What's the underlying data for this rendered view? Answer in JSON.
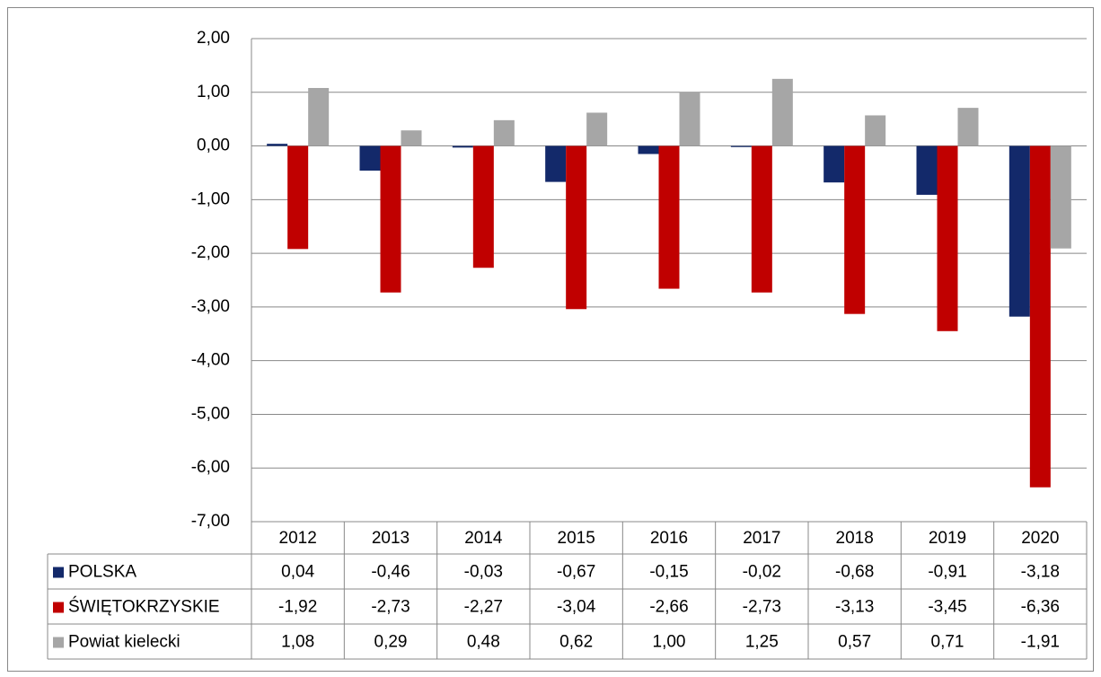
{
  "chart_data": {
    "type": "bar",
    "categories": [
      "2012",
      "2013",
      "2014",
      "2015",
      "2016",
      "2017",
      "2018",
      "2019",
      "2020"
    ],
    "series": [
      {
        "name": "POLSKA",
        "color": "#13296a",
        "values": [
          0.04,
          -0.46,
          -0.03,
          -0.67,
          -0.15,
          -0.02,
          -0.68,
          -0.91,
          -3.18
        ],
        "value_labels": [
          "0,04",
          "-0,46",
          "-0,03",
          "-0,67",
          "-0,15",
          "-0,02",
          "-0,68",
          "-0,91",
          "-3,18"
        ]
      },
      {
        "name": "ŚWIĘTOKRZYSKIE",
        "color": "#c00000",
        "values": [
          -1.92,
          -2.73,
          -2.27,
          -3.04,
          -2.66,
          -2.73,
          -3.13,
          -3.45,
          -6.36
        ],
        "value_labels": [
          "-1,92",
          "-2,73",
          "-2,27",
          "-3,04",
          "-2,66",
          "-2,73",
          "-3,13",
          "-3,45",
          "-6,36"
        ]
      },
      {
        "name": "Powiat kielecki",
        "color": "#a6a6a6",
        "values": [
          1.08,
          0.29,
          0.48,
          0.62,
          1.0,
          1.25,
          0.57,
          0.71,
          -1.91
        ],
        "value_labels": [
          "1,08",
          "0,29",
          "0,48",
          "0,62",
          "1,00",
          "1,25",
          "0,57",
          "0,71",
          "-1,91"
        ]
      }
    ],
    "ylim": [
      -7,
      2
    ],
    "yticks": [
      {
        "value": -7,
        "label": "-7,00"
      },
      {
        "value": -6,
        "label": "-6,00"
      },
      {
        "value": -5,
        "label": "-5,00"
      },
      {
        "value": -4,
        "label": "-4,00"
      },
      {
        "value": -3,
        "label": "-3,00"
      },
      {
        "value": -2,
        "label": "-2,00"
      },
      {
        "value": -1,
        "label": "-1,00"
      },
      {
        "value": 0,
        "label": "0,00"
      },
      {
        "value": 1,
        "label": "1,00"
      },
      {
        "value": 2,
        "label": "2,00"
      }
    ],
    "grid": true,
    "data_table": true
  }
}
